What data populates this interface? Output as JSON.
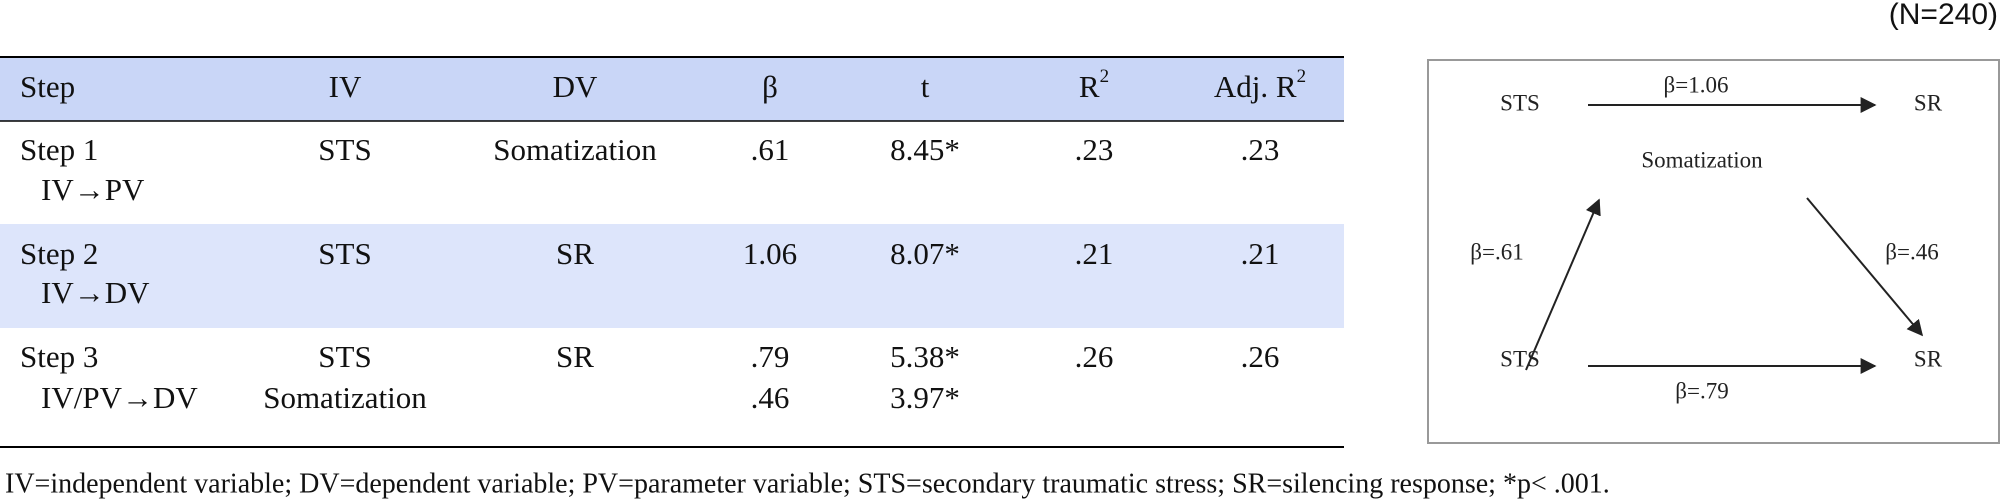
{
  "header": {
    "note": "(N=240)"
  },
  "table": {
    "columns": [
      {
        "label": "Step"
      },
      {
        "label": "IV"
      },
      {
        "label": "DV"
      },
      {
        "label": "β"
      },
      {
        "label": "t"
      },
      {
        "label": "R",
        "sup": "2"
      },
      {
        "label": "Adj. R",
        "sup": "2"
      }
    ],
    "rows": [
      [
        [
          "Step 1",
          "IV→PV"
        ],
        [
          "STS"
        ],
        [
          "Somatization"
        ],
        [
          ".61"
        ],
        [
          "8.45*"
        ],
        [
          ".23"
        ],
        [
          ".23"
        ]
      ],
      [
        [
          "Step 2",
          "IV→DV"
        ],
        [
          "STS"
        ],
        [
          "SR"
        ],
        [
          "1.06"
        ],
        [
          "8.07*"
        ],
        [
          ".21"
        ],
        [
          ".21"
        ]
      ],
      [
        [
          "Step 3",
          "IV/PV→DV"
        ],
        [
          "STS",
          "Somatization"
        ],
        [
          "SR"
        ],
        [
          ".79",
          ".46"
        ],
        [
          "5.38*",
          "3.97*"
        ],
        [
          ".26"
        ],
        [
          ".26"
        ]
      ]
    ]
  },
  "diagram": {
    "nodes": [
      {
        "label": "STS"
      },
      {
        "label": "SR"
      },
      {
        "label": "Somatization"
      },
      {
        "label": "STS"
      },
      {
        "label": "SR"
      }
    ],
    "edges": [
      {
        "label": "β=1.06"
      },
      {
        "label": "β=.61"
      },
      {
        "label": "β=.46"
      },
      {
        "label": "β=.79"
      }
    ]
  },
  "footnote": "IV=independent variable; DV=dependent variable; PV=parameter variable; STS=secondary traumatic stress; SR=silencing response; *p< .001."
}
